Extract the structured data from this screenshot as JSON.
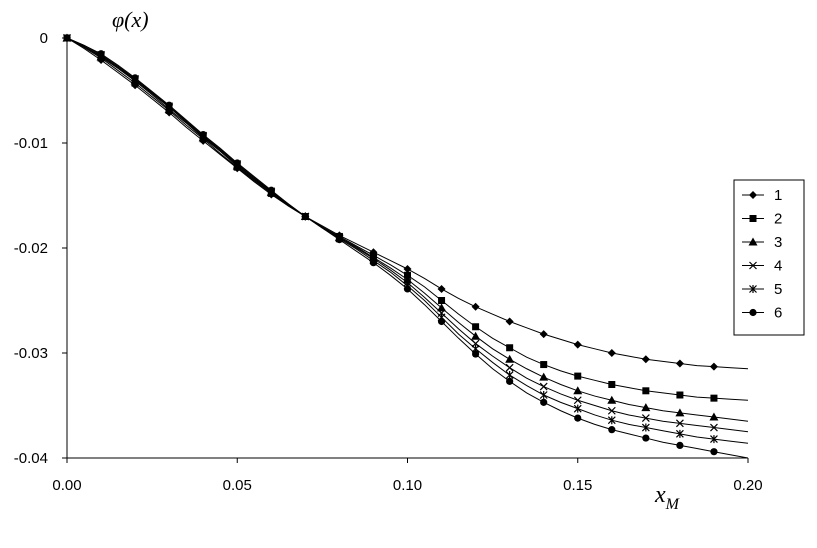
{
  "chart_data": {
    "type": "line",
    "xlabel": "x",
    "xlabel_subscript": "M",
    "ylabel": "φ(x)",
    "xlim": [
      0,
      0.2
    ],
    "ylim": [
      -0.04,
      0
    ],
    "x_ticks": [
      "0.00",
      "0.05",
      "0.10",
      "0.15",
      "0.20"
    ],
    "y_ticks": [
      "0",
      "-0.01",
      "-0.02",
      "-0.03",
      "-0.04"
    ],
    "grid": false,
    "legend_position": "right",
    "x": [
      0,
      0.005,
      0.01,
      0.015,
      0.02,
      0.025,
      0.03,
      0.035,
      0.04,
      0.045,
      0.05,
      0.055,
      0.06,
      0.065,
      0.07,
      0.075,
      0.08,
      0.085,
      0.09,
      0.095,
      0.1,
      0.105,
      0.11,
      0.115,
      0.12,
      0.125,
      0.13,
      0.135,
      0.14,
      0.145,
      0.15,
      0.155,
      0.16,
      0.165,
      0.17,
      0.175,
      0.18,
      0.185,
      0.19,
      0.195,
      0.2
    ],
    "series": [
      {
        "name": "1",
        "marker": "diamond",
        "values": [
          0,
          -0.001,
          -0.0021,
          -0.0033,
          -0.0045,
          -0.0058,
          -0.0071,
          -0.0085,
          -0.0098,
          -0.0111,
          -0.0124,
          -0.0137,
          -0.0149,
          -0.016,
          -0.017,
          -0.0179,
          -0.0188,
          -0.0196,
          -0.0204,
          -0.0212,
          -0.022,
          -0.0229,
          -0.0239,
          -0.0248,
          -0.0256,
          -0.0263,
          -0.027,
          -0.0276,
          -0.0282,
          -0.0287,
          -0.0292,
          -0.0296,
          -0.03,
          -0.0303,
          -0.0306,
          -0.0308,
          -0.031,
          -0.0312,
          -0.0313,
          -0.0314,
          -0.0315
        ]
      },
      {
        "name": "2",
        "marker": "square",
        "values": [
          0,
          -0.0009,
          -0.0019,
          -0.0031,
          -0.0043,
          -0.0056,
          -0.0069,
          -0.0083,
          -0.0096,
          -0.011,
          -0.0123,
          -0.0136,
          -0.0148,
          -0.016,
          -0.017,
          -0.018,
          -0.0189,
          -0.0198,
          -0.0207,
          -0.0216,
          -0.0226,
          -0.0237,
          -0.025,
          -0.0263,
          -0.0275,
          -0.0286,
          -0.0295,
          -0.0304,
          -0.0311,
          -0.0317,
          -0.0322,
          -0.0326,
          -0.033,
          -0.0333,
          -0.0336,
          -0.0338,
          -0.034,
          -0.0342,
          -0.0343,
          -0.0344,
          -0.0345
        ]
      },
      {
        "name": "3",
        "marker": "triangle",
        "values": [
          0,
          -0.0008,
          -0.0018,
          -0.0029,
          -0.0041,
          -0.0054,
          -0.0068,
          -0.0081,
          -0.0095,
          -0.0108,
          -0.0122,
          -0.0135,
          -0.0147,
          -0.0159,
          -0.017,
          -0.018,
          -0.019,
          -0.0199,
          -0.0209,
          -0.0219,
          -0.023,
          -0.0243,
          -0.0257,
          -0.0271,
          -0.0284,
          -0.0296,
          -0.0306,
          -0.0315,
          -0.0323,
          -0.033,
          -0.0336,
          -0.0341,
          -0.0345,
          -0.0349,
          -0.0352,
          -0.0355,
          -0.0357,
          -0.0359,
          -0.0361,
          -0.0363,
          -0.0365
        ]
      },
      {
        "name": "4",
        "marker": "x",
        "values": [
          0,
          -0.0008,
          -0.0017,
          -0.0028,
          -0.004,
          -0.0053,
          -0.0066,
          -0.008,
          -0.0094,
          -0.0107,
          -0.0121,
          -0.0134,
          -0.0147,
          -0.0159,
          -0.017,
          -0.018,
          -0.019,
          -0.02,
          -0.021,
          -0.0221,
          -0.0233,
          -0.0247,
          -0.0262,
          -0.0277,
          -0.0291,
          -0.0303,
          -0.0314,
          -0.0324,
          -0.0332,
          -0.0339,
          -0.0345,
          -0.035,
          -0.0355,
          -0.0359,
          -0.0362,
          -0.0365,
          -0.0367,
          -0.0369,
          -0.0371,
          -0.0373,
          -0.0375
        ]
      },
      {
        "name": "5",
        "marker": "star",
        "values": [
          0,
          -0.0007,
          -0.0016,
          -0.0027,
          -0.0039,
          -0.0052,
          -0.0065,
          -0.0079,
          -0.0093,
          -0.0106,
          -0.012,
          -0.0133,
          -0.0146,
          -0.0158,
          -0.017,
          -0.0181,
          -0.0191,
          -0.0201,
          -0.0212,
          -0.0223,
          -0.0236,
          -0.025,
          -0.0266,
          -0.0282,
          -0.0296,
          -0.0309,
          -0.0321,
          -0.0331,
          -0.034,
          -0.0347,
          -0.0353,
          -0.0359,
          -0.0364,
          -0.0368,
          -0.0371,
          -0.0374,
          -0.0377,
          -0.038,
          -0.0382,
          -0.0384,
          -0.0386
        ]
      },
      {
        "name": "6",
        "marker": "circle",
        "values": [
          0,
          -0.0007,
          -0.0015,
          -0.0026,
          -0.0038,
          -0.0051,
          -0.0064,
          -0.0078,
          -0.0092,
          -0.0105,
          -0.0119,
          -0.0132,
          -0.0145,
          -0.0158,
          -0.017,
          -0.0181,
          -0.0192,
          -0.0203,
          -0.0214,
          -0.0226,
          -0.0239,
          -0.0254,
          -0.027,
          -0.0286,
          -0.0301,
          -0.0315,
          -0.0327,
          -0.0338,
          -0.0347,
          -0.0355,
          -0.0362,
          -0.0368,
          -0.0373,
          -0.0377,
          -0.0381,
          -0.0385,
          -0.0388,
          -0.0391,
          -0.0394,
          -0.0397,
          -0.04
        ]
      }
    ]
  }
}
